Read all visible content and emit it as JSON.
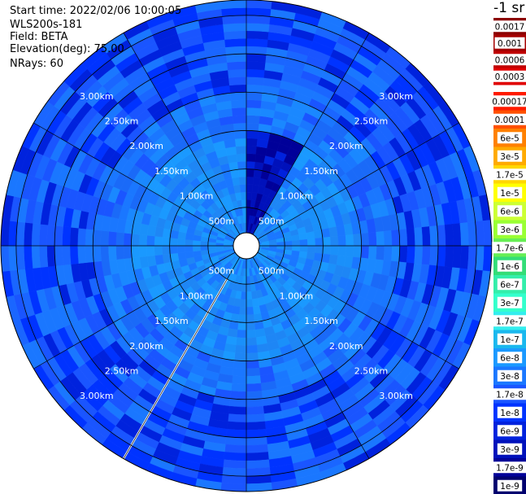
{
  "header": {
    "start_time": "Start time: 2022/02/06 10:00:05",
    "instrument": "WLS200s-181",
    "field": "Field: BETA",
    "elevation": "Elevation(deg): 75.00",
    "nrays": "NRays: 60"
  },
  "colorbar": {
    "title": "-1 sr",
    "entries": [
      {
        "label": "0.0017",
        "color": "#8b0000"
      },
      {
        "label": "0.001",
        "color": "#a50000"
      },
      {
        "label": "0.0006",
        "color": "#c00000"
      },
      {
        "label": "0.0003",
        "color": "#e00000"
      },
      {
        "label": "0.00017",
        "color": "#ff1a00"
      },
      {
        "label": "0.0001",
        "color": "#ff5000"
      },
      {
        "label": "6e-5",
        "color": "#ff8000"
      },
      {
        "label": "3e-5",
        "color": "#ffaa00"
      },
      {
        "label": "1.7e-5",
        "color": "#ffd700"
      },
      {
        "label": "1e-5",
        "color": "#ffff00"
      },
      {
        "label": "6e-6",
        "color": "#ccff33"
      },
      {
        "label": "3e-6",
        "color": "#99ff33"
      },
      {
        "label": "1.7e-6",
        "color": "#66ee55"
      },
      {
        "label": "1e-6",
        "color": "#33dd77"
      },
      {
        "label": "6e-7",
        "color": "#33eeaa"
      },
      {
        "label": "3e-7",
        "color": "#33ffcc"
      },
      {
        "label": "1.7e-7",
        "color": "#33eeee"
      },
      {
        "label": "1e-7",
        "color": "#1ab8ee"
      },
      {
        "label": "6e-8",
        "color": "#1a99ff"
      },
      {
        "label": "3e-8",
        "color": "#1a77ff"
      },
      {
        "label": "1.7e-8",
        "color": "#1a55ff"
      },
      {
        "label": "1e-8",
        "color": "#0033ff"
      },
      {
        "label": "6e-9",
        "color": "#0022dd"
      },
      {
        "label": "3e-9",
        "color": "#0011bb"
      },
      {
        "label": "1.7e-9",
        "color": "#000099"
      },
      {
        "label": "1e-9",
        "color": "#00006e"
      }
    ]
  },
  "chart_data": {
    "type": "heatmap",
    "projection": "polar-ppi",
    "field": "BETA",
    "units": "-1 sr",
    "elevation_deg": 75.0,
    "nrays": 60,
    "range_rings_km": [
      0.5,
      1.0,
      1.5,
      2.0,
      2.5,
      3.0
    ],
    "ring_labels": [
      "500m",
      "1.00km",
      "1.50km",
      "2.00km",
      "2.50km",
      "3.00km"
    ],
    "max_range_km": 3.2,
    "azimuth_lines_deg": [
      0,
      30,
      60,
      90,
      120,
      150,
      180,
      210,
      240,
      270,
      300,
      330
    ],
    "color_scale": "log",
    "value_range": [
      1e-09,
      0.0017
    ],
    "range_bands": [
      {
        "from_km": 0.1,
        "to_km": 1.5,
        "typical": "6e-8"
      },
      {
        "from_km": 1.5,
        "to_km": 2.0,
        "typical": "3e-8"
      },
      {
        "from_km": 2.0,
        "to_km": 3.2,
        "typical": "1.7e-8"
      }
    ],
    "features": [
      {
        "note": "low-backscatter wedge",
        "azimuth_deg": [
          0,
          30
        ],
        "range_km": [
          0.1,
          1.5
        ],
        "value": "3e-9"
      },
      {
        "note": "missing ray",
        "azimuth_deg": 210,
        "range_km": [
          0.5,
          3.2
        ]
      }
    ]
  }
}
